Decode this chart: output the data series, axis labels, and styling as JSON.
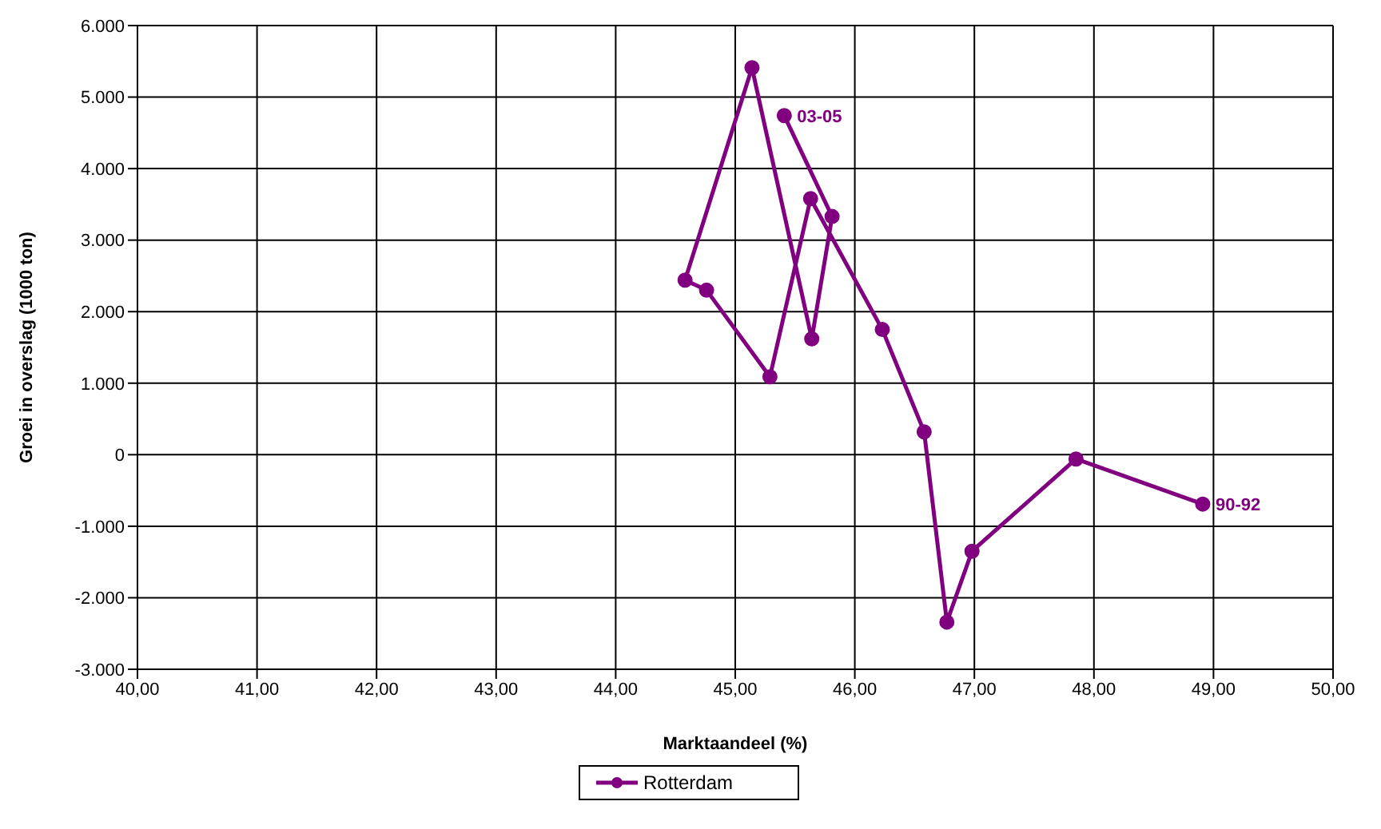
{
  "chart_data": {
    "type": "line",
    "xlabel": "Marktaandeel (%)",
    "ylabel": "Groei in overslag (1000 ton)",
    "x": [
      48.91,
      47.85,
      46.98,
      46.77,
      46.58,
      46.23,
      45.63,
      45.29,
      44.76,
      44.58,
      45.14,
      45.64,
      45.81,
      45.41
    ],
    "series": [
      {
        "name": "Rotterdam",
        "color": "#800080",
        "values": [
          -690,
          -60,
          -1350,
          -2340,
          320,
          1750,
          3580,
          1090,
          2300,
          2440,
          5410,
          1620,
          3330,
          4740
        ]
      }
    ],
    "xlim": [
      40,
      50
    ],
    "xticks": [
      {
        "value": 40,
        "label": "40,00"
      },
      {
        "value": 41,
        "label": "41,00"
      },
      {
        "value": 42,
        "label": "42,00"
      },
      {
        "value": 43,
        "label": "43,00"
      },
      {
        "value": 44,
        "label": "44,00"
      },
      {
        "value": 45,
        "label": "45,00"
      },
      {
        "value": 46,
        "label": "46,00"
      },
      {
        "value": 47,
        "label": "47,00"
      },
      {
        "value": 48,
        "label": "48,00"
      },
      {
        "value": 49,
        "label": "49,00"
      },
      {
        "value": 50,
        "label": "50,00"
      }
    ],
    "ylim": [
      -3000,
      6000
    ],
    "yticks": [
      {
        "value": -3000,
        "label": "-3.000"
      },
      {
        "value": -2000,
        "label": "-2.000"
      },
      {
        "value": -1000,
        "label": "-1.000"
      },
      0,
      {
        "value": 1000,
        "label": "1.000"
      },
      {
        "value": 2000,
        "label": "2.000"
      },
      {
        "value": 3000,
        "label": "3.000"
      },
      {
        "value": 4000,
        "label": "4.000"
      },
      {
        "value": 5000,
        "label": "5.000"
      },
      {
        "value": 6000,
        "label": "6.000"
      }
    ],
    "annotations": [
      {
        "text": "90-92",
        "x": 48.91,
        "y": -690
      },
      {
        "text": "03-05",
        "x": 45.41,
        "y": 4740
      }
    ],
    "grid": true,
    "legend": "bottom",
    "marker": "circle",
    "line_style": "solid"
  }
}
